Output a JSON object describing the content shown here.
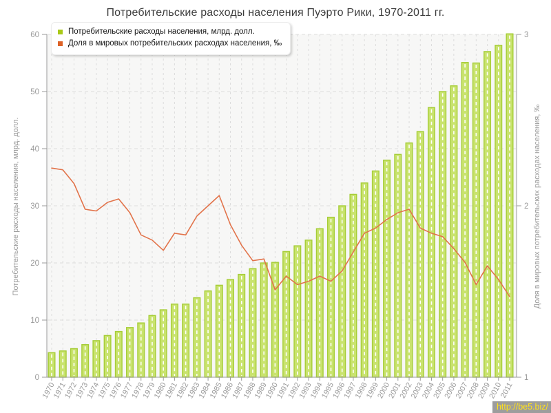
{
  "title": "Потребительские расходы населения Пуэрто Рики, 1970-2011 гг.",
  "footer": {
    "link_text": "http://be5.biz/"
  },
  "colors": {
    "bar_fill": "#c9e36e",
    "bar_border": "#a6cd37",
    "bar_dash": "#ffffff",
    "line": "#e2734a",
    "legend_bar_swatch": "#a9c917",
    "legend_line_swatch": "#dd6227",
    "grid": "#dcdcdc",
    "axis": "#999999",
    "tick_text": "#999999",
    "plot_bg": "#f7f7f6",
    "footer_bg": "#9d9d9d",
    "footer_text": "#ffe11a"
  },
  "chart_data": {
    "type": "bar+line",
    "title": "Потребительские расходы населения Пуэрто Рики, 1970-2011 гг.",
    "grid": true,
    "legend_position": "top-left",
    "categories": [
      "1970",
      "1971",
      "1972",
      "1973",
      "1974",
      "1975",
      "1976",
      "1977",
      "1978",
      "1979",
      "1980",
      "1981",
      "1982",
      "1983",
      "1984",
      "1985",
      "1986",
      "1987",
      "1988",
      "1989",
      "1990",
      "1991",
      "1992",
      "1993",
      "1994",
      "1995",
      "1996",
      "1997",
      "1998",
      "1999",
      "2000",
      "2001",
      "2002",
      "2003",
      "2004",
      "2005",
      "2006",
      "2007",
      "2008",
      "2009",
      "2010",
      "2011"
    ],
    "series": [
      {
        "name": "Потребительские расходы населения, млрд. долл.",
        "type": "bar",
        "y_axis": "left",
        "color": "#b9d741",
        "values": [
          4.3,
          4.6,
          5.0,
          5.7,
          6.4,
          7.3,
          8.0,
          8.7,
          9.5,
          10.8,
          11.8,
          12.8,
          12.8,
          13.9,
          15.1,
          16.1,
          17.1,
          18.0,
          19.0,
          20.0,
          20.1,
          22.0,
          23.0,
          24.0,
          26.0,
          28.0,
          30.0,
          32.0,
          34.0,
          36.1,
          38.0,
          39.0,
          41.0,
          43.0,
          47.2,
          50.0,
          51.0,
          55.1,
          55.0,
          57.0,
          58.1,
          60.1
        ]
      },
      {
        "name": "Доля в мировых потребительских расходах населения, ‰",
        "type": "line",
        "y_axis": "right",
        "color": "#e2734a",
        "values": [
          2.22,
          2.21,
          2.13,
          1.98,
          1.97,
          2.02,
          2.04,
          1.96,
          1.83,
          1.8,
          1.74,
          1.84,
          1.83,
          1.94,
          2.0,
          2.06,
          1.89,
          1.77,
          1.68,
          1.69,
          1.51,
          1.59,
          1.54,
          1.56,
          1.59,
          1.56,
          1.62,
          1.73,
          1.84,
          1.87,
          1.92,
          1.96,
          1.98,
          1.87,
          1.84,
          1.82,
          1.75,
          1.67,
          1.54,
          1.65,
          1.57,
          1.47
        ]
      }
    ],
    "left_axis": {
      "label": "Потребительские расходы населения, млрд. долл.",
      "ticks": [
        0,
        10,
        20,
        30,
        40,
        50,
        60
      ],
      "range": [
        0,
        60
      ]
    },
    "right_axis": {
      "label": "Доля в мировых потребительских расходах населения, ‰",
      "ticks": [
        1,
        2,
        3
      ],
      "range": [
        1,
        3
      ]
    },
    "x_axis": {
      "tick_rotation": -62
    }
  }
}
